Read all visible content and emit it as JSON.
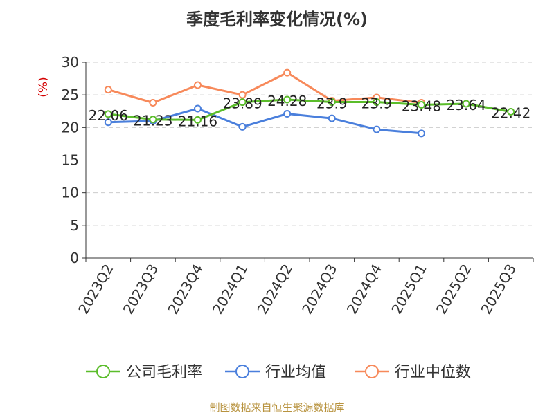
{
  "chart_data": {
    "type": "line",
    "title": "季度毛利率变化情况(%)",
    "ylabel": "(%)",
    "ylim": [
      0,
      30
    ],
    "yticks": [
      0,
      5,
      10,
      15,
      20,
      25,
      30
    ],
    "grid": true,
    "legend_position": "bottom",
    "categories": [
      "2023Q2",
      "2023Q3",
      "2023Q4",
      "2024Q1",
      "2024Q2",
      "2024Q3",
      "2024Q4",
      "2025Q1",
      "2025Q2",
      "2025Q3"
    ],
    "series": [
      {
        "name": "公司毛利率",
        "color": "#5bbd2b",
        "show_labels": true,
        "values": [
          22.06,
          21.23,
          21.16,
          23.89,
          24.28,
          23.9,
          23.9,
          23.48,
          23.64,
          22.42
        ]
      },
      {
        "name": "行业均值",
        "color": "#4a7fdc",
        "show_labels": false,
        "values": [
          20.8,
          21.0,
          22.9,
          20.1,
          22.1,
          21.4,
          19.7,
          19.1,
          null,
          null
        ]
      },
      {
        "name": "行业中位数",
        "color": "#f7895a",
        "show_labels": false,
        "values": [
          25.8,
          23.8,
          26.5,
          25.0,
          28.4,
          24.1,
          24.6,
          23.8,
          null,
          null
        ]
      }
    ]
  },
  "source": "制图数据来自恒生聚源数据库"
}
